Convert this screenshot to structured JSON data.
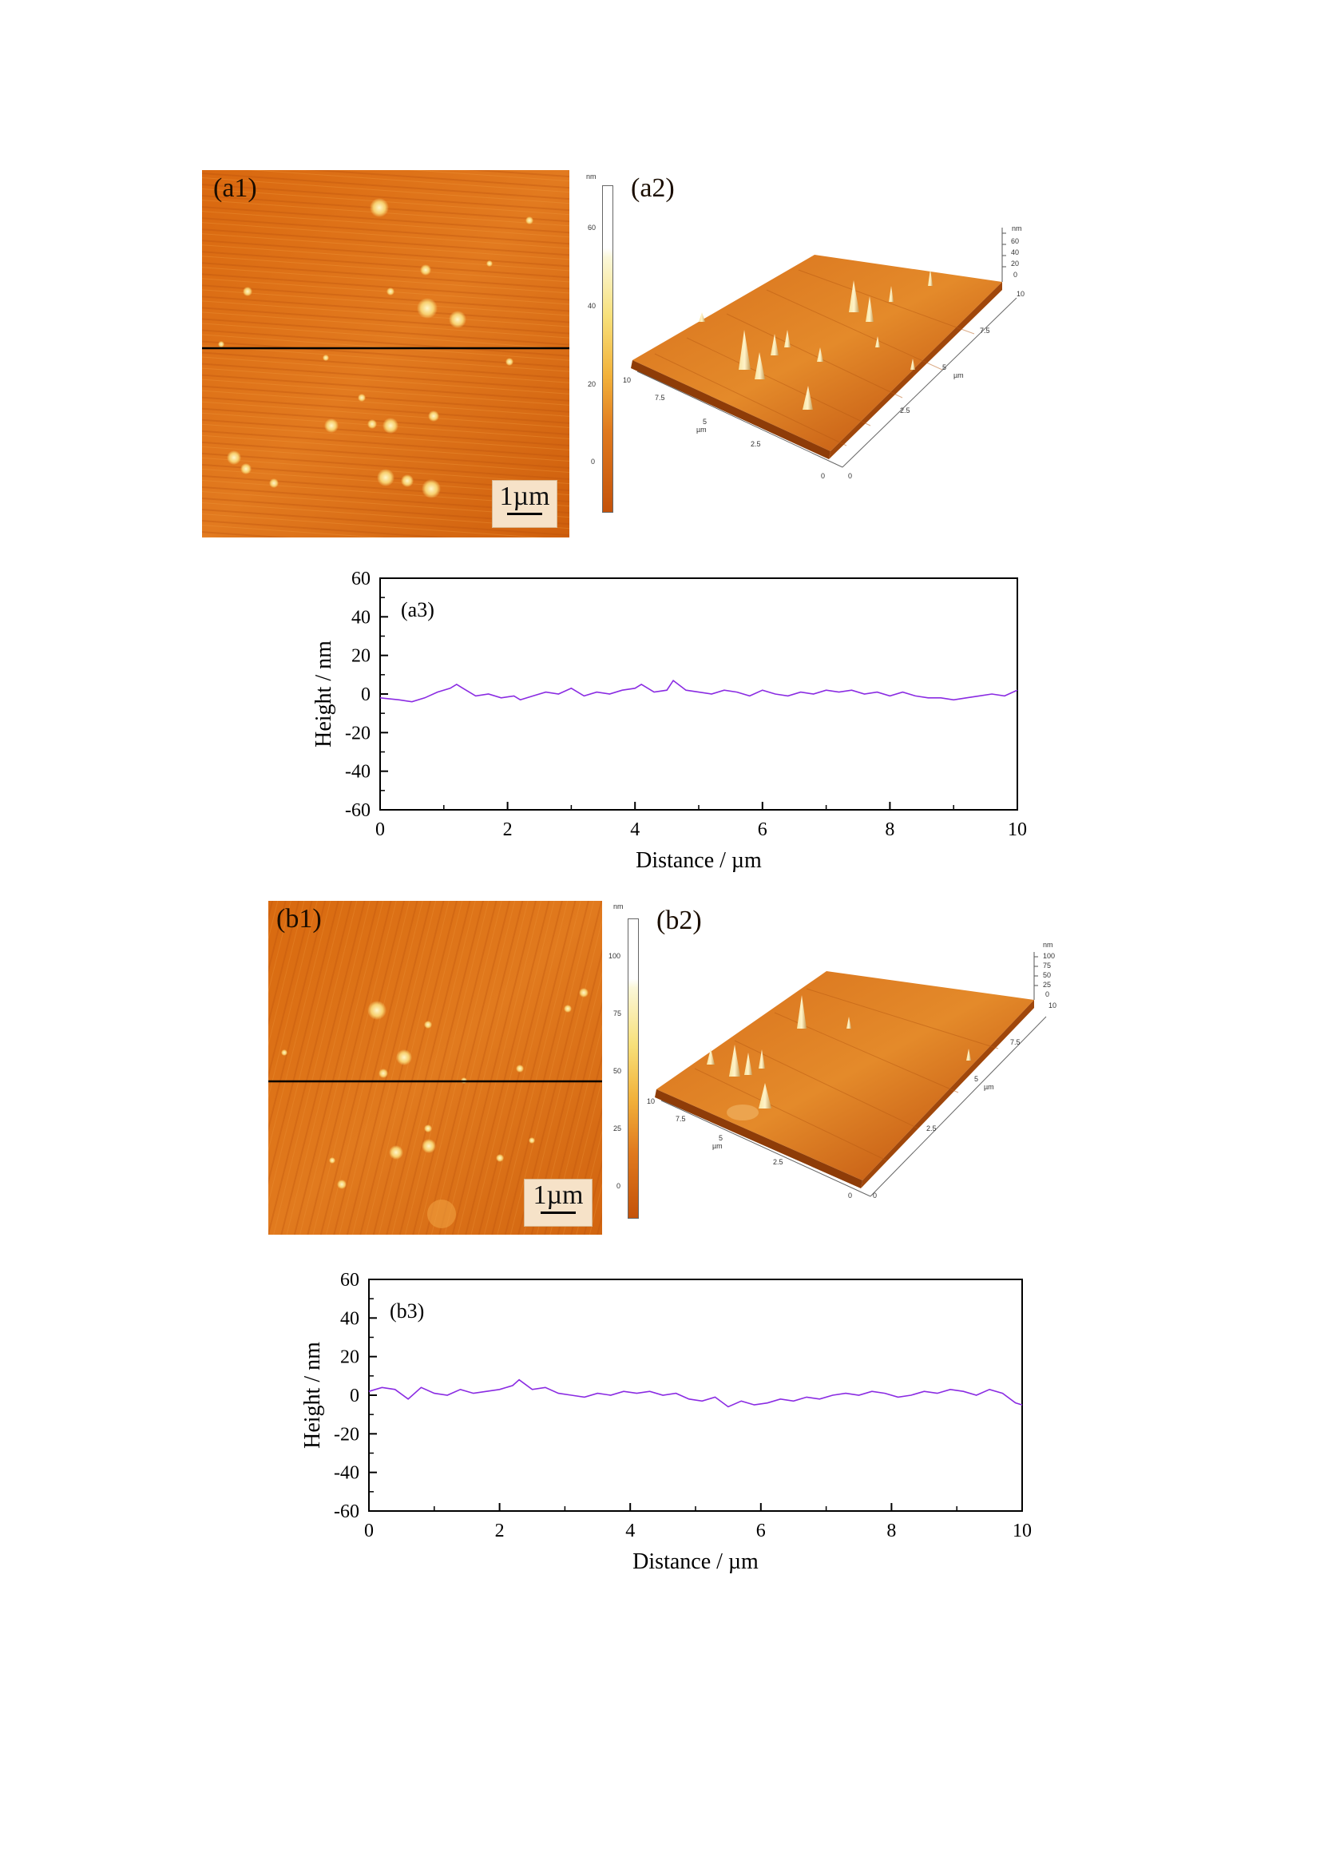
{
  "figure": {
    "a": {
      "afm2d": {
        "label": "(a1)",
        "scalebar": "1µm"
      },
      "colorbar": {
        "unit": "nm",
        "ticks": [
          "60",
          "40",
          "20",
          "0"
        ]
      },
      "afm3d": {
        "label": "(a2)",
        "z_axis": {
          "unit": "nm",
          "ticks": [
            "60",
            "40",
            "20",
            "0"
          ]
        },
        "x_axis": {
          "unit": "µm",
          "ticks": [
            "0",
            "2.5",
            "5",
            "7.5",
            "10"
          ]
        },
        "y_axis": {
          "unit": "µm",
          "ticks": [
            "0",
            "2.5",
            "5",
            "7.5",
            "10"
          ]
        }
      }
    },
    "b": {
      "afm2d": {
        "label": "(b1)",
        "scalebar": "1µm"
      },
      "colorbar": {
        "unit": "nm",
        "ticks": [
          "100",
          "75",
          "50",
          "25",
          "0"
        ]
      },
      "afm3d": {
        "label": "(b2)",
        "z_axis": {
          "unit": "nm",
          "ticks": [
            "100",
            "75",
            "50",
            "25",
            "0"
          ]
        },
        "x_axis": {
          "unit": "µm",
          "ticks": [
            "0",
            "2.5",
            "5",
            "7.5",
            "10"
          ]
        },
        "y_axis": {
          "unit": "µm",
          "ticks": [
            "0",
            "2.5",
            "5",
            "7.5",
            "10"
          ]
        }
      }
    }
  },
  "colors": {
    "afm_dark": "#b8480a",
    "afm_mid": "#e07a1e",
    "afm_light": "#f7d070",
    "profile_line": "#8a2be2"
  },
  "chart_data": [
    {
      "type": "line",
      "panel_label": "(a3)",
      "xlabel": "Distance / µm",
      "ylabel": "Height / nm",
      "xlim": [
        0,
        10
      ],
      "ylim": [
        -60,
        60
      ],
      "xticks": [
        "0",
        "2",
        "4",
        "6",
        "8",
        "10"
      ],
      "yticks": [
        "60",
        "40",
        "20",
        "0",
        "-20",
        "-40",
        "-60"
      ],
      "series": [
        {
          "x": [
            0,
            0.3,
            0.5,
            0.7,
            0.9,
            1.1,
            1.2,
            1.3,
            1.5,
            1.7,
            1.9,
            2.1,
            2.2,
            2.4,
            2.6,
            2.8,
            3.0,
            3.2,
            3.4,
            3.6,
            3.8,
            4.0,
            4.1,
            4.3,
            4.5,
            4.6,
            4.8,
            5.0,
            5.2,
            5.4,
            5.6,
            5.8,
            6.0,
            6.2,
            6.4,
            6.6,
            6.8,
            7.0,
            7.2,
            7.4,
            7.6,
            7.8,
            8.0,
            8.2,
            8.4,
            8.6,
            8.8,
            9.0,
            9.2,
            9.4,
            9.6,
            9.8,
            10.0
          ],
          "y": [
            -2,
            -3,
            -4,
            -2,
            1,
            3,
            5,
            3,
            -1,
            0,
            -2,
            -1,
            -3,
            -1,
            1,
            0,
            3,
            -1,
            1,
            0,
            2,
            3,
            5,
            1,
            2,
            7,
            2,
            1,
            0,
            2,
            1,
            -1,
            2,
            0,
            -1,
            1,
            0,
            2,
            1,
            2,
            0,
            1,
            -1,
            1,
            -1,
            -2,
            -2,
            -3,
            -2,
            -1,
            0,
            -1,
            2
          ]
        }
      ]
    },
    {
      "type": "line",
      "panel_label": "(b3)",
      "xlabel": "Distance / µm",
      "ylabel": "Height / nm",
      "xlim": [
        0,
        10
      ],
      "ylim": [
        -60,
        60
      ],
      "xticks": [
        "0",
        "2",
        "4",
        "6",
        "8",
        "10"
      ],
      "yticks": [
        "60",
        "40",
        "20",
        "0",
        "-20",
        "-40",
        "-60"
      ],
      "series": [
        {
          "x": [
            0,
            0.2,
            0.4,
            0.6,
            0.8,
            1.0,
            1.2,
            1.4,
            1.6,
            1.8,
            2.0,
            2.2,
            2.3,
            2.5,
            2.7,
            2.9,
            3.1,
            3.3,
            3.5,
            3.7,
            3.9,
            4.1,
            4.3,
            4.5,
            4.7,
            4.9,
            5.1,
            5.3,
            5.5,
            5.7,
            5.9,
            6.1,
            6.3,
            6.5,
            6.7,
            6.9,
            7.1,
            7.3,
            7.5,
            7.7,
            7.9,
            8.1,
            8.3,
            8.5,
            8.7,
            8.9,
            9.1,
            9.3,
            9.5,
            9.7,
            9.9,
            10.0
          ],
          "y": [
            2,
            4,
            3,
            -2,
            4,
            1,
            0,
            3,
            1,
            2,
            3,
            5,
            8,
            3,
            4,
            1,
            0,
            -1,
            1,
            0,
            2,
            1,
            2,
            0,
            1,
            -2,
            -3,
            -1,
            -6,
            -3,
            -5,
            -4,
            -2,
            -3,
            -1,
            -2,
            0,
            1,
            0,
            2,
            1,
            -1,
            0,
            2,
            1,
            3,
            2,
            0,
            3,
            1,
            -4,
            -5
          ]
        }
      ]
    }
  ]
}
